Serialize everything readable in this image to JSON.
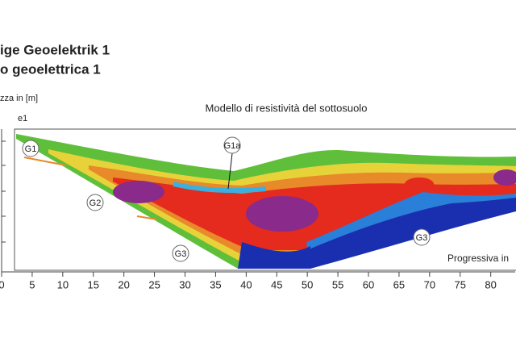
{
  "header": {
    "line1": "ige Geoelektrik 1",
    "line2": "o geoelettrica 1"
  },
  "chart_data": {
    "type": "section",
    "title": "Modello di resistività del sottosuolo",
    "y_axis_label": "zza in [m]",
    "profile_label": "e1",
    "x_axis_label": "Progressiva in",
    "xlim": [
      0,
      84
    ],
    "xticks": [
      0,
      5,
      10,
      15,
      20,
      25,
      30,
      35,
      40,
      45,
      50,
      55,
      60,
      65,
      70,
      75,
      80
    ],
    "annotations": [
      "G1",
      "G1a",
      "G2",
      "G3",
      "G3"
    ]
  }
}
